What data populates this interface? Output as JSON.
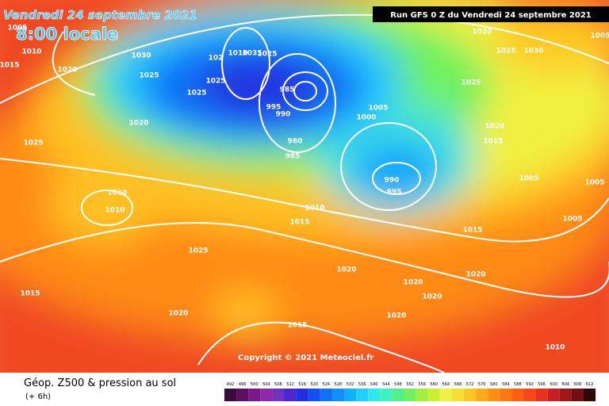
{
  "header": {
    "date": "Vendredi 24 septembre 2021",
    "time": "8:00 locale",
    "run": "Run GFS 0 Z du Vendredi 24 septembre 2021"
  },
  "copyright": "Copyright © 2021 Meteociel.fr",
  "footer": {
    "title": "Géop. Z500 & pression au sol",
    "lead": "(+ 6h)"
  },
  "isobar_labels": [
    "1005",
    "1010",
    "1015",
    "1020",
    "1030",
    "1025",
    "1020",
    "1025",
    "1010",
    "1010",
    "1025",
    "1015",
    "1020",
    "1015",
    "1020",
    "1010",
    "1015",
    "102",
    "1010",
    "1035",
    "1025",
    "1025",
    "1025",
    "995",
    "990",
    "985",
    "980",
    "985",
    "1005",
    "1000",
    "990",
    "995",
    "1020",
    "1025",
    "1030",
    "1025",
    "1020",
    "1015",
    "1005",
    "1005",
    "1005",
    "1015",
    "1020",
    "1020",
    "1020",
    "1020",
    "1010",
    "1005"
  ],
  "scale": {
    "values": [
      "492",
      "496",
      "500",
      "504",
      "508",
      "512",
      "516",
      "520",
      "524",
      "528",
      "532",
      "536",
      "540",
      "544",
      "548",
      "552",
      "556",
      "560",
      "564",
      "568",
      "572",
      "576",
      "580",
      "584",
      "588",
      "592",
      "596",
      "600",
      "604",
      "608",
      "612"
    ],
    "colors": [
      "#3a0a3a",
      "#5a0f5f",
      "#7a1a8a",
      "#8c2aa8",
      "#7030c0",
      "#4a28d0",
      "#2030e0",
      "#1050f0",
      "#1070f8",
      "#1090ff",
      "#10b0ff",
      "#20d0ff",
      "#30e8e8",
      "#40f0c0",
      "#50f090",
      "#70f060",
      "#a0f040",
      "#c8f030",
      "#f0f040",
      "#f8e030",
      "#ffc820",
      "#ffa818",
      "#ff9010",
      "#ff7810",
      "#ff6010",
      "#f84818",
      "#e83020",
      "#c82020",
      "#a01818",
      "#701010",
      "#300808"
    ]
  }
}
